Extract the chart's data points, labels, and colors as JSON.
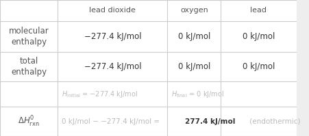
{
  "figsize": [
    4.52,
    1.99
  ],
  "dpi": 100,
  "bg_color": "#eeeeee",
  "cell_bg": "#ffffff",
  "border_color": "#cccccc",
  "header_row": [
    "",
    "lead dioxide",
    "oxygen",
    "lead"
  ],
  "row1_label": "molecular\nenthalpy",
  "row2_label": "total\nenthalpy",
  "row1_data": [
    "−277.4 kJ/mol",
    "0 kJ/mol",
    "0 kJ/mol"
  ],
  "row2_data": [
    "−277.4 kJ/mol",
    "0 kJ/mol",
    "0 kJ/mol"
  ],
  "rxn_text_gray": "0 kJ/mol − −277.4 kJ/mol = ",
  "rxn_text_bold": "277.4 kJ/mol",
  "rxn_text_end": " (endothermic)",
  "text_color": "#555555",
  "text_color_dark": "#333333",
  "hint_color": "#bbbbbb"
}
